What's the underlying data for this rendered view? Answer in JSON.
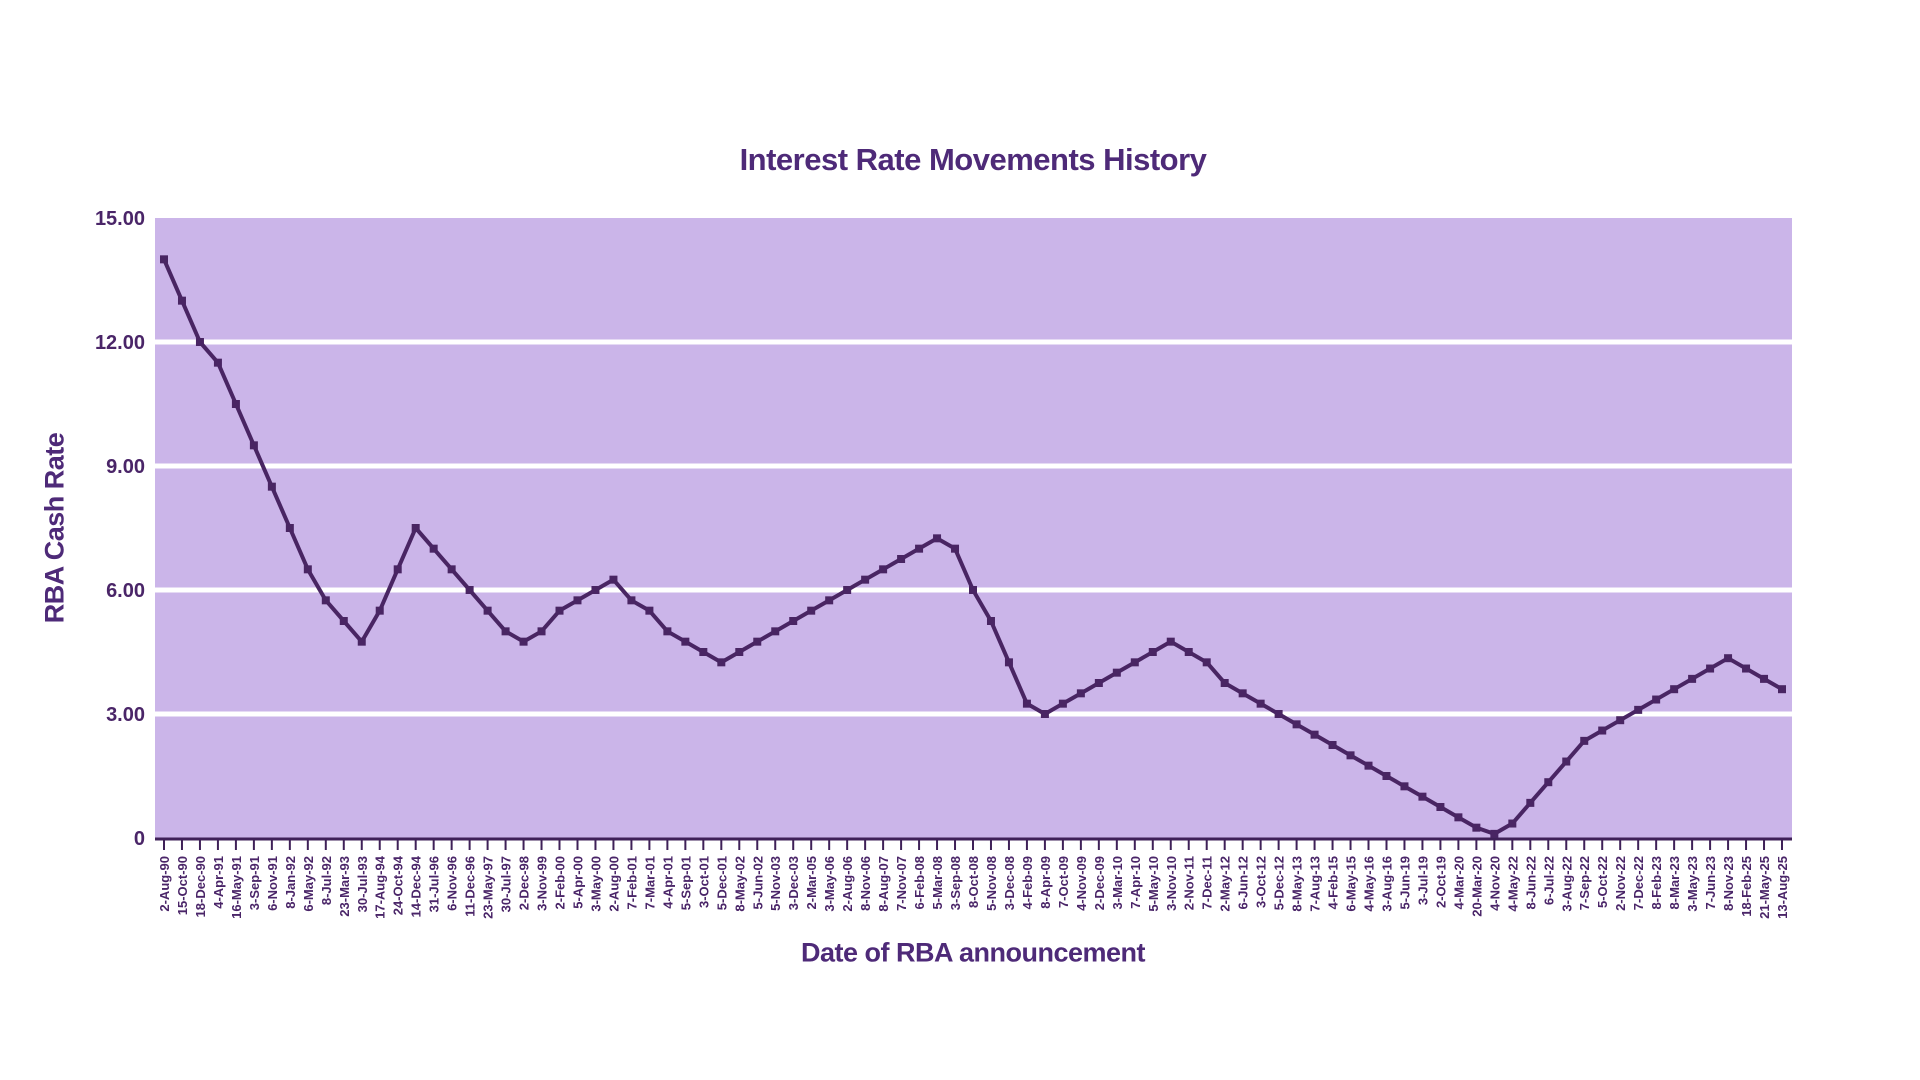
{
  "chart_data": {
    "type": "line",
    "title": "Interest Rate Movements History",
    "xlabel": "Date of RBA announcement",
    "ylabel": "RBA Cash Rate",
    "ylim": [
      0,
      15
    ],
    "grid": "horizontal-white",
    "legend": "none",
    "yticks": [
      {
        "value": 0,
        "label": "0"
      },
      {
        "value": 3,
        "label": "3.00"
      },
      {
        "value": 6,
        "label": "6.00"
      },
      {
        "value": 9,
        "label": "9.00"
      },
      {
        "value": 12,
        "label": "12.00"
      },
      {
        "value": 15,
        "label": "15.00"
      }
    ],
    "categories": [
      "2-Aug-90",
      "15-Oct-90",
      "18-Dec-90",
      "4-Apr-91",
      "16-May-91",
      "3-Sep-91",
      "6-Nov-91",
      "8-Jan-92",
      "6-May-92",
      "8-Jul-92",
      "23-Mar-93",
      "30-Jul-93",
      "17-Aug-94",
      "24-Oct-94",
      "14-Dec-94",
      "31-Jul-96",
      "6-Nov-96",
      "11-Dec-96",
      "23-May-97",
      "30-Jul-97",
      "2-Dec-98",
      "3-Nov-99",
      "2-Feb-00",
      "5-Apr-00",
      "3-May-00",
      "2-Aug-00",
      "7-Feb-01",
      "7-Mar-01",
      "4-Apr-01",
      "5-Sep-01",
      "3-Oct-01",
      "5-Dec-01",
      "8-May-02",
      "5-Jun-02",
      "5-Nov-03",
      "3-Dec-03",
      "2-Mar-05",
      "3-May-06",
      "2-Aug-06",
      "8-Nov-06",
      "8-Aug-07",
      "7-Nov-07",
      "6-Feb-08",
      "5-Mar-08",
      "3-Sep-08",
      "8-Oct-08",
      "5-Nov-08",
      "3-Dec-08",
      "4-Feb-09",
      "8-Apr-09",
      "7-Oct-09",
      "4-Nov-09",
      "2-Dec-09",
      "3-Mar-10",
      "7-Apr-10",
      "5-May-10",
      "3-Nov-10",
      "2-Nov-11",
      "7-Dec-11",
      "2-May-12",
      "6-Jun-12",
      "3-Oct-12",
      "5-Dec-12",
      "8-May-13",
      "7-Aug-13",
      "4-Feb-15",
      "6-May-15",
      "4-May-16",
      "3-Aug-16",
      "5-Jun-19",
      "3-Jul-19",
      "2-Oct-19",
      "4-Mar-20",
      "20-Mar-20",
      "4-Nov-20",
      "4-May-22",
      "8-Jun-22",
      "6-Jul-22",
      "3-Aug-22",
      "7-Sep-22",
      "5-Oct-22",
      "2-Nov-22",
      "7-Dec-22",
      "8-Feb-23",
      "8-Mar-23",
      "3-May-23",
      "7-Jun-23",
      "8-Nov-23",
      "18-Feb-25",
      "21-May-25",
      "13-Aug-25"
    ],
    "values": [
      14.0,
      13.0,
      12.0,
      11.5,
      10.5,
      9.5,
      8.5,
      7.5,
      6.5,
      5.75,
      5.25,
      4.75,
      5.5,
      6.5,
      7.5,
      7.0,
      6.5,
      6.0,
      5.5,
      5.0,
      4.75,
      5.0,
      5.5,
      5.75,
      6.0,
      6.25,
      5.75,
      5.5,
      5.0,
      4.75,
      4.5,
      4.25,
      4.5,
      4.75,
      5.0,
      5.25,
      5.5,
      5.75,
      6.0,
      6.25,
      6.5,
      6.75,
      7.0,
      7.25,
      7.0,
      6.0,
      5.25,
      4.25,
      3.25,
      3.0,
      3.25,
      3.5,
      3.75,
      4.0,
      4.25,
      4.5,
      4.75,
      4.5,
      4.25,
      3.75,
      3.5,
      3.25,
      3.0,
      2.75,
      2.5,
      2.25,
      2.0,
      1.75,
      1.5,
      1.25,
      1.0,
      0.75,
      0.5,
      0.25,
      0.1,
      0.35,
      0.85,
      1.35,
      1.85,
      2.35,
      2.6,
      2.85,
      3.1,
      3.35,
      3.6,
      3.85,
      4.1,
      4.35,
      4.1,
      3.85,
      3.6
    ],
    "colors": {
      "background": "#FFFFFF",
      "plot_background": "#CBB5E9",
      "gridline": "#FFFFFF",
      "line": "#492563",
      "marker": "#492563",
      "axis": "#3F2158",
      "text": "#4E2A78",
      "tick_text": "#4A2568"
    }
  }
}
